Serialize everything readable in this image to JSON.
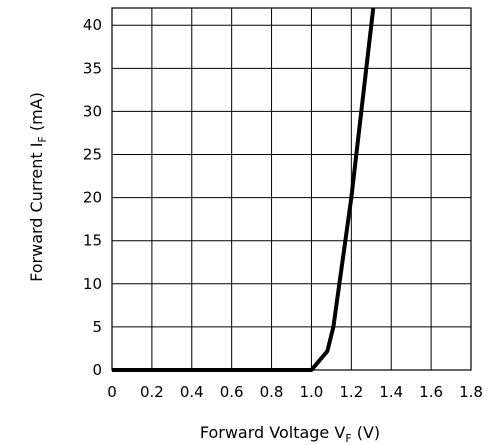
{
  "chart_data": {
    "type": "line",
    "title": "",
    "xlabel": {
      "main": "Forward Voltage V",
      "sub": "F",
      "unit": " (V)"
    },
    "ylabel": {
      "main": "Forward Current I",
      "sub": "F",
      "unit": " (mA)"
    },
    "xlim": [
      0,
      1.8
    ],
    "ylim": [
      0,
      42
    ],
    "xticks": [
      0,
      0.2,
      0.4,
      0.6,
      0.8,
      1.0,
      1.2,
      1.4,
      1.6,
      1.8
    ],
    "xtick_labels": [
      "0",
      "0.2",
      "0.4",
      "0.6",
      "0.8",
      "1.0",
      "1.2",
      "1.4",
      "1.6",
      "1.8"
    ],
    "yticks": [
      0,
      5,
      10,
      15,
      20,
      25,
      30,
      35,
      40
    ],
    "ytick_labels": [
      "0",
      "5",
      "10",
      "15",
      "20",
      "25",
      "30",
      "35",
      "40"
    ],
    "grid": true,
    "series": [
      {
        "x": [
          0,
          1.0,
          1.08,
          1.11,
          1.2,
          1.31
        ],
        "y": [
          0,
          0,
          2.2,
          5,
          20,
          42
        ]
      }
    ]
  }
}
